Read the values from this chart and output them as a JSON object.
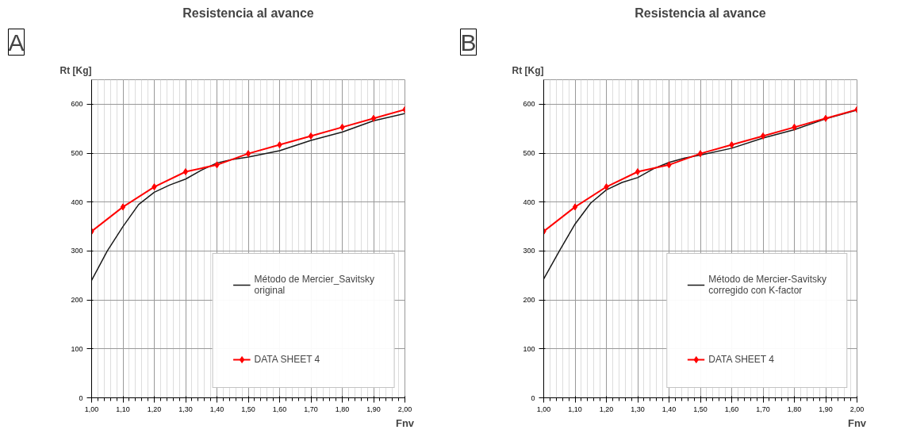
{
  "chart_data": [
    {
      "type": "line",
      "title": "Resistencia al avance",
      "xlabel": "Fnv",
      "ylabel": "Rt [Kg]",
      "annotations": [
        "A"
      ],
      "xlim": [
        1.0,
        2.0
      ],
      "ylim": [
        0,
        650
      ],
      "xticks": [
        {
          "value": 1.0,
          "label": "1,00"
        },
        {
          "value": 1.1,
          "label": "1,10"
        },
        {
          "value": 1.2,
          "label": "1,20"
        },
        {
          "value": 1.3,
          "label": "1,30"
        },
        {
          "value": 1.4,
          "label": "1,40"
        },
        {
          "value": 1.5,
          "label": "1,50"
        },
        {
          "value": 1.6,
          "label": "1,60"
        },
        {
          "value": 1.7,
          "label": "1,70"
        },
        {
          "value": 1.8,
          "label": "1,80"
        },
        {
          "value": 1.9,
          "label": "1,90"
        },
        {
          "value": 2.0,
          "label": "2,00"
        }
      ],
      "yticks": [
        0,
        100,
        200,
        300,
        400,
        500,
        600
      ],
      "grid": true,
      "legend": "bottom right",
      "series": [
        {
          "name": "Método de Mercier_Savitsky original",
          "color": "#1a1a1a",
          "marker": "none",
          "x": [
            1.0,
            1.05,
            1.1,
            1.15,
            1.2,
            1.25,
            1.3,
            1.35,
            1.4,
            1.45,
            1.5,
            1.6,
            1.7,
            1.8,
            1.9,
            2.0
          ],
          "values": [
            240,
            300,
            350,
            395,
            420,
            435,
            447,
            465,
            480,
            487,
            492,
            505,
            526,
            543,
            566,
            581
          ]
        },
        {
          "name": "DATA SHEET 4",
          "color": "#ff0000",
          "marker": "diamond",
          "x": [
            1.0,
            1.1,
            1.2,
            1.3,
            1.4,
            1.5,
            1.6,
            1.7,
            1.8,
            1.9,
            2.0
          ],
          "values": [
            340,
            390,
            431,
            462,
            476,
            499,
            517,
            535,
            553,
            571,
            589
          ]
        }
      ]
    },
    {
      "type": "line",
      "title": "Resistencia al avance",
      "xlabel": "Fnv",
      "ylabel": "Rt [Kg]",
      "annotations": [
        "B"
      ],
      "xlim": [
        1.0,
        2.0
      ],
      "ylim": [
        0,
        650
      ],
      "xticks": [
        {
          "value": 1.0,
          "label": "1,00"
        },
        {
          "value": 1.1,
          "label": "1,10"
        },
        {
          "value": 1.2,
          "label": "1,20"
        },
        {
          "value": 1.3,
          "label": "1,30"
        },
        {
          "value": 1.4,
          "label": "1,40"
        },
        {
          "value": 1.5,
          "label": "1,50"
        },
        {
          "value": 1.6,
          "label": "1,60"
        },
        {
          "value": 1.7,
          "label": "1,70"
        },
        {
          "value": 1.8,
          "label": "1,80"
        },
        {
          "value": 1.9,
          "label": "1,90"
        },
        {
          "value": 2.0,
          "label": "2,00"
        }
      ],
      "yticks": [
        0,
        100,
        200,
        300,
        400,
        500,
        600
      ],
      "grid": true,
      "legend": "bottom right",
      "series": [
        {
          "name": "Método de Mercier-Savitsky corregido con K-factor",
          "color": "#1a1a1a",
          "marker": "none",
          "x": [
            1.0,
            1.05,
            1.1,
            1.15,
            1.2,
            1.25,
            1.3,
            1.35,
            1.4,
            1.45,
            1.5,
            1.6,
            1.7,
            1.8,
            1.9,
            2.0
          ],
          "values": [
            243,
            300,
            355,
            398,
            425,
            440,
            450,
            468,
            481,
            490,
            496,
            510,
            531,
            548,
            570,
            588
          ]
        },
        {
          "name": "DATA SHEET 4",
          "color": "#ff0000",
          "marker": "diamond",
          "x": [
            1.0,
            1.1,
            1.2,
            1.3,
            1.4,
            1.5,
            1.6,
            1.7,
            1.8,
            1.9,
            2.0
          ],
          "values": [
            340,
            390,
            431,
            462,
            476,
            499,
            517,
            535,
            553,
            571,
            589
          ]
        }
      ]
    }
  ]
}
